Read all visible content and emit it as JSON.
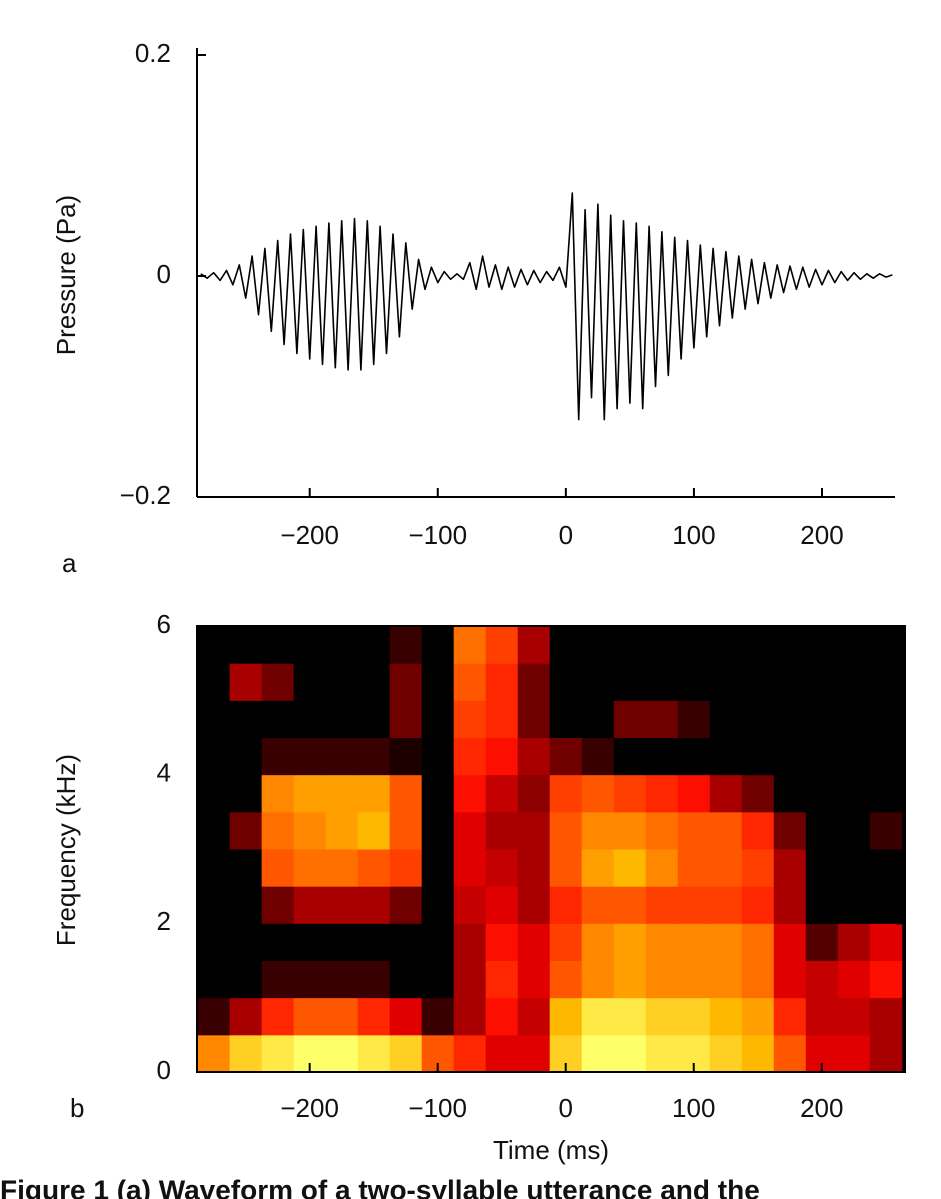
{
  "chart_data": [
    {
      "type": "line",
      "panel_label": "a",
      "y_label": "Pressure (Pa)",
      "xlim": [
        -288,
        257
      ],
      "ylim": [
        -0.2,
        0.2
      ],
      "xticks": [
        {
          "value": -200,
          "label": "−200"
        },
        {
          "value": -100,
          "label": "−100"
        },
        0,
        100,
        200
      ],
      "yticks": [
        {
          "value": -0.2,
          "label": "−0.2"
        },
        0,
        0.2
      ],
      "series": [
        {
          "color": "#000000",
          "x": [
            -285,
            -280,
            -275,
            -270,
            -265,
            -260,
            -255,
            -250,
            -245,
            -240,
            -235,
            -230,
            -225,
            -220,
            -215,
            -210,
            -205,
            -200,
            -195,
            -190,
            -185,
            -180,
            -175,
            -170,
            -165,
            -160,
            -155,
            -150,
            -145,
            -140,
            -135,
            -130,
            -125,
            -120,
            -115,
            -110,
            -105,
            -100,
            -95,
            -90,
            -85,
            -80,
            -75,
            -70,
            -65,
            -60,
            -55,
            -50,
            -45,
            -40,
            -35,
            -30,
            -25,
            -20,
            -15,
            -10,
            -5,
            0,
            5,
            10,
            15,
            20,
            25,
            30,
            35,
            40,
            45,
            50,
            55,
            60,
            65,
            70,
            75,
            80,
            85,
            90,
            95,
            100,
            105,
            110,
            115,
            120,
            125,
            130,
            135,
            140,
            145,
            150,
            155,
            160,
            165,
            170,
            175,
            180,
            185,
            190,
            195,
            200,
            205,
            210,
            215,
            220,
            225,
            230,
            235,
            240,
            245,
            250,
            255
          ],
          "values": [
            0.002,
            -0.002,
            0.003,
            -0.004,
            0.005,
            -0.008,
            0.01,
            -0.02,
            0.018,
            -0.035,
            0.025,
            -0.05,
            0.032,
            -0.062,
            0.038,
            -0.07,
            0.042,
            -0.075,
            0.045,
            -0.08,
            0.048,
            -0.083,
            0.05,
            -0.085,
            0.052,
            -0.085,
            0.05,
            -0.08,
            0.045,
            -0.07,
            0.038,
            -0.055,
            0.03,
            -0.03,
            0.015,
            -0.012,
            0.008,
            -0.006,
            0.004,
            -0.003,
            0.002,
            -0.003,
            0.012,
            -0.012,
            0.018,
            -0.01,
            0.01,
            -0.012,
            0.008,
            -0.01,
            0.006,
            -0.008,
            0.005,
            -0.006,
            0.004,
            -0.004,
            0.008,
            -0.01,
            0.075,
            -0.13,
            0.06,
            -0.11,
            0.065,
            -0.13,
            0.055,
            -0.12,
            0.05,
            -0.115,
            0.048,
            -0.12,
            0.045,
            -0.1,
            0.04,
            -0.09,
            0.035,
            -0.075,
            0.032,
            -0.065,
            0.028,
            -0.055,
            0.025,
            -0.045,
            0.022,
            -0.038,
            0.018,
            -0.03,
            0.015,
            -0.025,
            0.012,
            -0.02,
            0.01,
            -0.015,
            0.009,
            -0.012,
            0.008,
            -0.01,
            0.006,
            -0.008,
            0.005,
            -0.006,
            0.004,
            -0.004,
            0.003,
            -0.003,
            0.002,
            -0.002,
            0.002,
            -0.001,
            0.001
          ]
        }
      ]
    },
    {
      "type": "heatmap",
      "panel_label": "b",
      "x_label": "Time (ms)",
      "y_label": "Frequency (kHz)",
      "colormap": "hot",
      "xlim": [
        -288,
        265
      ],
      "ylim": [
        0,
        6
      ],
      "xticks": [
        {
          "value": -200,
          "label": "−200"
        },
        {
          "value": -100,
          "label": "−100"
        },
        0,
        100,
        200
      ],
      "yticks": [
        0,
        2,
        4,
        6
      ],
      "x": [
        -275,
        -250,
        -225,
        -200,
        -175,
        -150,
        -125,
        -100,
        -75,
        -50,
        -25,
        0,
        25,
        50,
        75,
        100,
        125,
        150,
        175,
        200,
        225,
        250
      ],
      "y": [
        0.25,
        0.75,
        1.25,
        1.75,
        2.25,
        2.75,
        3.25,
        3.75,
        4.25,
        4.75,
        5.25,
        5.75
      ],
      "z": [
        [
          0.7,
          0.85,
          0.9,
          0.95,
          0.95,
          0.9,
          0.85,
          0.6,
          0.5,
          0.4,
          0.4,
          0.85,
          0.95,
          0.95,
          0.9,
          0.9,
          0.85,
          0.8,
          0.6,
          0.4,
          0.4,
          0.3
        ],
        [
          0.1,
          0.3,
          0.5,
          0.6,
          0.6,
          0.5,
          0.4,
          0.1,
          0.3,
          0.45,
          0.35,
          0.8,
          0.9,
          0.9,
          0.85,
          0.85,
          0.8,
          0.75,
          0.5,
          0.35,
          0.35,
          0.3
        ],
        [
          0,
          0,
          0.1,
          0.1,
          0.1,
          0.1,
          0,
          0,
          0.3,
          0.5,
          0.4,
          0.6,
          0.7,
          0.75,
          0.7,
          0.7,
          0.7,
          0.65,
          0.4,
          0.35,
          0.4,
          0.45
        ],
        [
          0,
          0,
          0,
          0,
          0,
          0,
          0,
          0,
          0.3,
          0.45,
          0.4,
          0.55,
          0.7,
          0.75,
          0.7,
          0.7,
          0.7,
          0.65,
          0.4,
          0.15,
          0.3,
          0.4
        ],
        [
          0,
          0,
          0.2,
          0.3,
          0.3,
          0.3,
          0.2,
          0,
          0.35,
          0.4,
          0.3,
          0.5,
          0.6,
          0.6,
          0.55,
          0.55,
          0.55,
          0.5,
          0.3,
          0,
          0,
          0
        ],
        [
          0,
          0,
          0.6,
          0.65,
          0.65,
          0.6,
          0.55,
          0,
          0.4,
          0.35,
          0.3,
          0.6,
          0.75,
          0.8,
          0.7,
          0.6,
          0.6,
          0.55,
          0.3,
          0,
          0,
          0
        ],
        [
          0,
          0.2,
          0.65,
          0.7,
          0.75,
          0.8,
          0.6,
          0,
          0.4,
          0.3,
          0.3,
          0.6,
          0.7,
          0.7,
          0.65,
          0.6,
          0.6,
          0.5,
          0.2,
          0,
          0,
          0.1
        ],
        [
          0,
          0,
          0.7,
          0.75,
          0.75,
          0.75,
          0.6,
          0,
          0.45,
          0.35,
          0.25,
          0.55,
          0.6,
          0.55,
          0.5,
          0.45,
          0.3,
          0.2,
          0,
          0,
          0,
          0
        ],
        [
          0,
          0,
          0.1,
          0.1,
          0.1,
          0.1,
          0.05,
          0,
          0.5,
          0.45,
          0.3,
          0.2,
          0.1,
          0,
          0,
          0,
          0,
          0,
          0,
          0,
          0,
          0
        ],
        [
          0,
          0,
          0,
          0,
          0,
          0,
          0.2,
          0,
          0.55,
          0.5,
          0.2,
          0,
          0,
          0.2,
          0.2,
          0.1,
          0,
          0,
          0,
          0,
          0,
          0
        ],
        [
          0,
          0.3,
          0.2,
          0,
          0,
          0,
          0.2,
          0,
          0.6,
          0.5,
          0.2,
          0,
          0,
          0,
          0,
          0,
          0,
          0,
          0,
          0,
          0,
          0
        ],
        [
          0,
          0,
          0,
          0,
          0,
          0,
          0.1,
          0,
          0.65,
          0.55,
          0.3,
          0,
          0,
          0,
          0,
          0,
          0,
          0,
          0,
          0,
          0,
          0
        ]
      ]
    }
  ],
  "caption": "Figure 1   (a) Waveform of a two-syllable utterance and the"
}
